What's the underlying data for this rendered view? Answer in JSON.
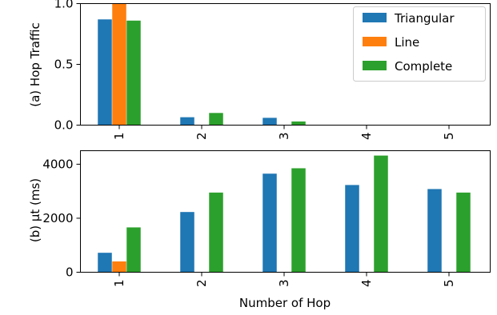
{
  "chart_data": [
    {
      "type": "bar",
      "categories": [
        "1",
        "2",
        "3",
        "4",
        "5"
      ],
      "series": [
        {
          "name": "Triangular",
          "values": [
            0.87,
            0.065,
            0.06,
            0.002,
            0.001
          ]
        },
        {
          "name": "Line",
          "values": [
            1.0,
            0.0,
            0.0,
            0.0,
            0.0
          ]
        },
        {
          "name": "Complete",
          "values": [
            0.86,
            0.1,
            0.03,
            0.002,
            0.001
          ]
        }
      ],
      "ylabel": "(a) Hop Traffic",
      "xlabel": "",
      "ylim": [
        0,
        1.0
      ],
      "yticks": [
        "0.0",
        "0.5",
        "1.0"
      ],
      "legend": "top-right"
    },
    {
      "type": "bar",
      "categories": [
        "1",
        "2",
        "3",
        "4",
        "5"
      ],
      "series": [
        {
          "name": "Triangular",
          "values": [
            720,
            2230,
            3650,
            3230,
            3080
          ]
        },
        {
          "name": "Line",
          "values": [
            400,
            0,
            0,
            0,
            0
          ]
        },
        {
          "name": "Complete",
          "values": [
            1660,
            2950,
            3850,
            4320,
            2950
          ]
        }
      ],
      "ylabel": "(b)  μt (ms)",
      "xlabel": "Number of Hop",
      "ylim": [
        0,
        4500
      ],
      "yticks": [
        "0",
        "2000",
        "4000"
      ]
    }
  ],
  "colors": {
    "Triangular": "#1f77b4",
    "Line": "#ff7f0e",
    "Complete": "#2ca02c"
  }
}
